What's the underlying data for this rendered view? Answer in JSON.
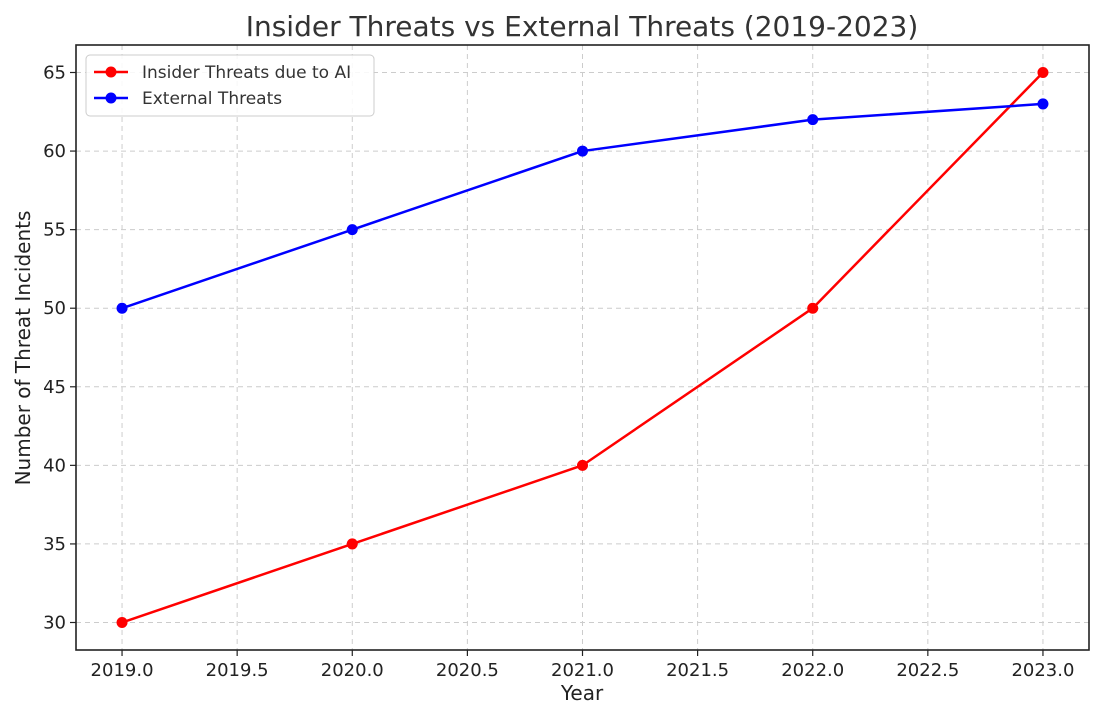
{
  "chart_data": {
    "type": "line",
    "title": "Insider Threats vs External Threats (2019-2023)",
    "xlabel": "Year",
    "ylabel": "Number of Threat Incidents",
    "x": [
      2019,
      2020,
      2021,
      2022,
      2023
    ],
    "xlim": [
      2018.8,
      2023.2
    ],
    "ylim": [
      28.25,
      66.75
    ],
    "x_ticks": [
      2019.0,
      2019.5,
      2020.0,
      2020.5,
      2021.0,
      2021.5,
      2022.0,
      2022.5,
      2023.0
    ],
    "x_tick_labels": [
      "2019.0",
      "2019.5",
      "2020.0",
      "2020.5",
      "2021.0",
      "2021.5",
      "2022.0",
      "2022.5",
      "2023.0"
    ],
    "y_ticks": [
      30,
      35,
      40,
      45,
      50,
      55,
      60,
      65
    ],
    "y_tick_labels": [
      "30",
      "35",
      "40",
      "45",
      "50",
      "55",
      "60",
      "65"
    ],
    "grid": true,
    "legend_position": "top-left",
    "series": [
      {
        "name": "Insider Threats due to AI",
        "values": [
          30,
          35,
          40,
          50,
          65
        ],
        "color": "#ff0000",
        "marker": "circle"
      },
      {
        "name": "External Threats",
        "values": [
          50,
          55,
          60,
          62,
          63
        ],
        "color": "#0000ff",
        "marker": "circle"
      }
    ]
  }
}
